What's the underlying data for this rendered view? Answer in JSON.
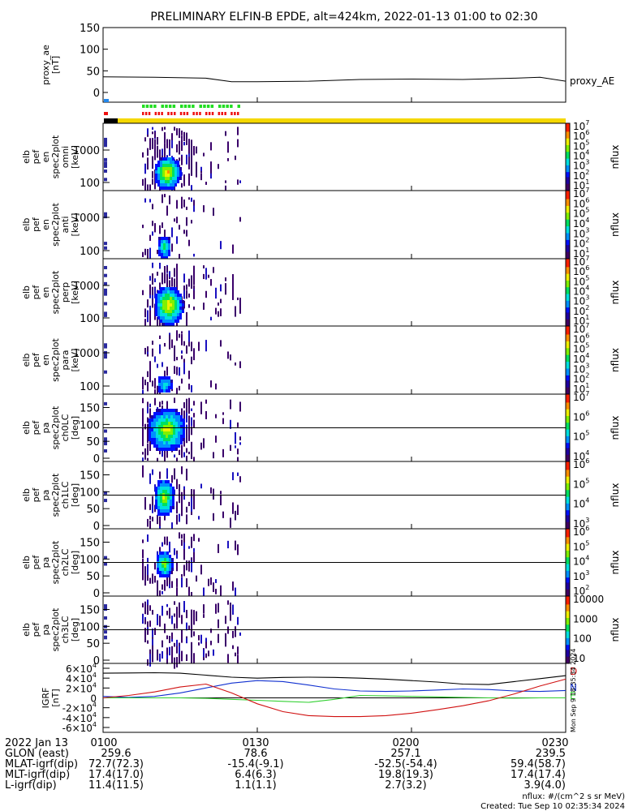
{
  "title": "PRELIMINARY ELFIN-B EPDE, alt=424km, 2022-01-13 01:00 to 02:30",
  "colors": {
    "yellow_bar": "#f5d800",
    "sci_green": "#22dd22",
    "sci_red": "#ee1111",
    "sci_blue": "#2288ee",
    "bz": "#000000",
    "bn": "#1030d0",
    "be": "#30d030",
    "bd": "#d01010"
  },
  "chart_data": [
    {
      "type": "line",
      "name": "proxy_ae",
      "ylabel_lines": [
        "proxy_ae",
        "[nT]"
      ],
      "series_label": "proxy_AE",
      "ylim": [
        0,
        150
      ],
      "yticks": [
        "0",
        "50",
        "100",
        "150"
      ],
      "x_minutes": [
        0,
        10,
        20,
        25,
        30,
        40,
        50,
        60,
        70,
        80,
        85,
        90
      ],
      "values": [
        36,
        35,
        33,
        25,
        25,
        26,
        30,
        31,
        30,
        33,
        35,
        26
      ]
    },
    {
      "type": "heatmap",
      "name": "elb_pef_en_spec2plot_omni",
      "ylabel_lines": [
        "elb",
        "pef",
        "en",
        "spec2plot",
        "omni",
        "[keV]"
      ],
      "yscale": "log",
      "yticks": [
        "100",
        "1000"
      ],
      "colorbar_label": "nflux",
      "colorbar_ticks": [
        "10",
        "10",
        "10",
        "10",
        "10",
        "10",
        "10"
      ],
      "colorbar_exps": [
        "1",
        "2",
        "3",
        "4",
        "5",
        "6",
        "7"
      ]
    },
    {
      "type": "heatmap",
      "name": "elb_pef_en_spec2plot_anti",
      "ylabel_lines": [
        "elb",
        "pef",
        "en",
        "spec2plot",
        "anti",
        "[keV]"
      ],
      "yscale": "log",
      "yticks": [
        "100",
        "1000"
      ],
      "colorbar_label": "nflux",
      "colorbar_ticks": [
        "10",
        "10",
        "10",
        "10",
        "10",
        "10",
        "10"
      ],
      "colorbar_exps": [
        "1",
        "2",
        "3",
        "4",
        "5",
        "6",
        "7"
      ]
    },
    {
      "type": "heatmap",
      "name": "elb_pef_en_spec2plot_perp",
      "ylabel_lines": [
        "elb",
        "pef",
        "en",
        "spec2plot",
        "perp",
        "[keV]"
      ],
      "yscale": "log",
      "yticks": [
        "100",
        "1000"
      ],
      "colorbar_label": "nflux",
      "colorbar_ticks": [
        "10",
        "10",
        "10",
        "10",
        "10",
        "10",
        "10"
      ],
      "colorbar_exps": [
        "1",
        "2",
        "3",
        "4",
        "5",
        "6",
        "7"
      ]
    },
    {
      "type": "heatmap",
      "name": "elb_pef_en_spec2plot_para",
      "ylabel_lines": [
        "elb",
        "pef",
        "en",
        "spec2plot",
        "para",
        "[keV]"
      ],
      "yscale": "log",
      "yticks": [
        "100",
        "1000"
      ],
      "colorbar_label": "nflux",
      "colorbar_ticks": [
        "10",
        "10",
        "10",
        "10",
        "10",
        "10",
        "10"
      ],
      "colorbar_exps": [
        "1",
        "2",
        "3",
        "4",
        "5",
        "6",
        "7"
      ]
    },
    {
      "type": "heatmap",
      "name": "elb_pef_pa_spec2plot_ch0LC",
      "ylabel_lines": [
        "elb",
        "pef",
        "pa",
        "spec2plot",
        "ch0LC",
        "[deg]"
      ],
      "ylim": [
        0,
        180
      ],
      "yticks": [
        "0",
        "50",
        "100",
        "150"
      ],
      "colorbar_label": "nflux",
      "colorbar_ticks": [
        "10",
        "10",
        "10",
        "10"
      ],
      "colorbar_exps": [
        "4",
        "5",
        "6",
        "7"
      ]
    },
    {
      "type": "heatmap",
      "name": "elb_pef_pa_spec2plot_ch1LC",
      "ylabel_lines": [
        "elb",
        "pef",
        "pa",
        "spec2plot",
        "ch1LC",
        "[deg]"
      ],
      "ylim": [
        0,
        180
      ],
      "yticks": [
        "0",
        "50",
        "100",
        "150"
      ],
      "colorbar_label": "nflux",
      "colorbar_ticks": [
        "10",
        "10",
        "10",
        "10"
      ],
      "colorbar_exps": [
        "3",
        "4",
        "5",
        "6"
      ]
    },
    {
      "type": "heatmap",
      "name": "elb_pef_pa_spec2plot_ch2LC",
      "ylabel_lines": [
        "elb",
        "pef",
        "pa",
        "spec2plot",
        "ch2LC",
        "[deg]"
      ],
      "ylim": [
        0,
        180
      ],
      "yticks": [
        "0",
        "50",
        "100",
        "150"
      ],
      "colorbar_label": "nflux",
      "colorbar_ticks": [
        "10",
        "10",
        "10",
        "10",
        "10"
      ],
      "colorbar_exps": [
        "2",
        "3",
        "4",
        "5",
        "6"
      ]
    },
    {
      "type": "heatmap",
      "name": "elb_pef_pa_spec2plot_ch3LC",
      "ylabel_lines": [
        "elb",
        "pef",
        "pa",
        "spec2plot",
        "ch3LC",
        "[deg]"
      ],
      "ylim": [
        0,
        180
      ],
      "yticks": [
        "0",
        "50",
        "100",
        "150"
      ],
      "colorbar_label": "nflux",
      "colorbar_ticks": [
        "10",
        "100",
        "1000",
        "10000"
      ],
      "colorbar_exps": [
        "",
        "",
        "",
        ""
      ]
    },
    {
      "type": "line",
      "name": "igrf",
      "ylabel_lines": [
        "IGRF",
        "[nT]"
      ],
      "ylim": [
        -60000,
        60000
      ],
      "yticks": [
        "-6×10",
        "-4×10",
        "-2×10",
        "0",
        "2×10",
        "4×10",
        "6×10"
      ],
      "ytick_exps": [
        "4",
        "4",
        "4",
        "",
        "4",
        "4",
        "4"
      ],
      "x_minutes": [
        0,
        5,
        10,
        15,
        20,
        25,
        30,
        35,
        40,
        45,
        50,
        55,
        60,
        65,
        70,
        75,
        80,
        85,
        90
      ],
      "series": [
        {
          "name": "Z",
          "values": [
            50000,
            50500,
            51000,
            50000,
            46000,
            42000,
            40000,
            41500,
            42000,
            41500,
            40000,
            38000,
            35000,
            32000,
            28000,
            27000,
            33000,
            39000,
            45000
          ]
        },
        {
          "name": "N",
          "values": [
            3000,
            1000,
            3000,
            10000,
            20000,
            30000,
            35000,
            33000,
            26000,
            18000,
            14000,
            13000,
            14000,
            16000,
            18000,
            17000,
            14000,
            13000,
            15000
          ]
        },
        {
          "name": "E",
          "values": [
            0,
            0,
            0,
            0,
            -1000,
            -3000,
            -5000,
            -7000,
            -9000,
            -3000,
            5000,
            4000,
            3000,
            2000,
            1000,
            0,
            -500,
            0,
            0
          ]
        },
        {
          "name": "D",
          "values": [
            0,
            5000,
            12000,
            22000,
            28000,
            10000,
            -12000,
            -28000,
            -36000,
            -38000,
            -38000,
            -36000,
            -31000,
            -24000,
            -16000,
            -6000,
            8000,
            24000,
            38000
          ]
        }
      ],
      "legend_letters": [
        "D",
        "N",
        "E"
      ]
    }
  ],
  "xaxis": {
    "date": "2022 Jan 13",
    "tick_labels": [
      "0100",
      "0130",
      "0200",
      "0230"
    ],
    "tick_minutes": [
      0,
      30,
      60,
      90
    ],
    "rows": [
      {
        "label": "GLON (east)",
        "values": [
          "259.6",
          "78.6",
          "257.1",
          "239.5"
        ]
      },
      {
        "label": "MLAT-igrf(dip)",
        "values": [
          "72.7(72.3)",
          "-15.4(-9.1)",
          "-52.5(-54.4)",
          "59.4(58.7)"
        ]
      },
      {
        "label": "MLT-igrf(dip)",
        "values": [
          "17.4(17.0)",
          "6.4(6.3)",
          "19.8(19.3)",
          "17.4(17.4)"
        ]
      },
      {
        "label": "L-igrf(dip)",
        "values": [
          "11.4(11.5)",
          "1.1(1.1)",
          "2.7(3.2)",
          "3.9(4.0)"
        ]
      }
    ]
  },
  "footer": {
    "units": "nflux: #/(cm^2 s sr MeV)",
    "created": "Created: Tue Sep 10 02:35:34 2024",
    "side_stamp": "Mon Sep  9 18:35:34 2024"
  }
}
